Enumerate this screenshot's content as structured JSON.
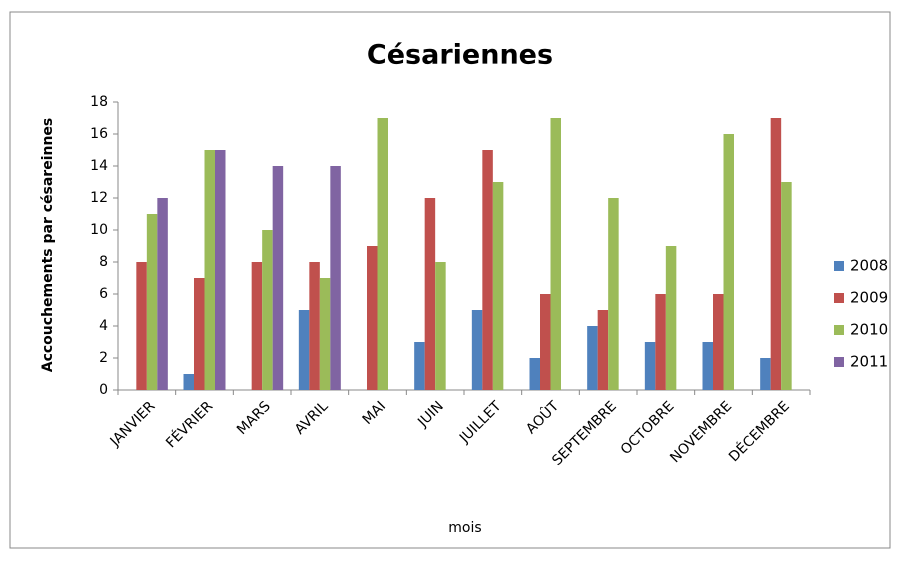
{
  "chart_data": {
    "type": "bar",
    "title": "Césariennes",
    "x_label": "mois",
    "y_label": "Accouchements par césareinnes",
    "categories": [
      "JANVIER",
      "FÉVRIER",
      "MARS",
      "AVRIL",
      "MAI",
      "JUIN",
      "JUILLET",
      "AOÛT",
      "SEPTEMBRE",
      "OCTOBRE",
      "NOVEMBRE",
      "DÉCEMBRE"
    ],
    "series": [
      {
        "name": "2008",
        "color": "#4f81bd",
        "values": [
          null,
          1,
          null,
          5,
          null,
          3,
          5,
          2,
          4,
          3,
          3,
          2
        ]
      },
      {
        "name": "2009",
        "color": "#c0504d",
        "values": [
          8,
          7,
          8,
          8,
          9,
          12,
          15,
          6,
          5,
          6,
          6,
          17
        ]
      },
      {
        "name": "2010",
        "color": "#9bbb59",
        "values": [
          11,
          15,
          10,
          7,
          17,
          8,
          13,
          17,
          12,
          9,
          16,
          13
        ]
      },
      {
        "name": "2011",
        "color": "#8064a2",
        "values": [
          12,
          15,
          14,
          14,
          null,
          null,
          null,
          null,
          null,
          null,
          null,
          null
        ]
      }
    ],
    "ylim": [
      0,
      18
    ],
    "yticks": [
      0,
      2,
      4,
      6,
      8,
      10,
      12,
      14,
      16,
      18
    ],
    "grid": false,
    "legend": "right"
  }
}
